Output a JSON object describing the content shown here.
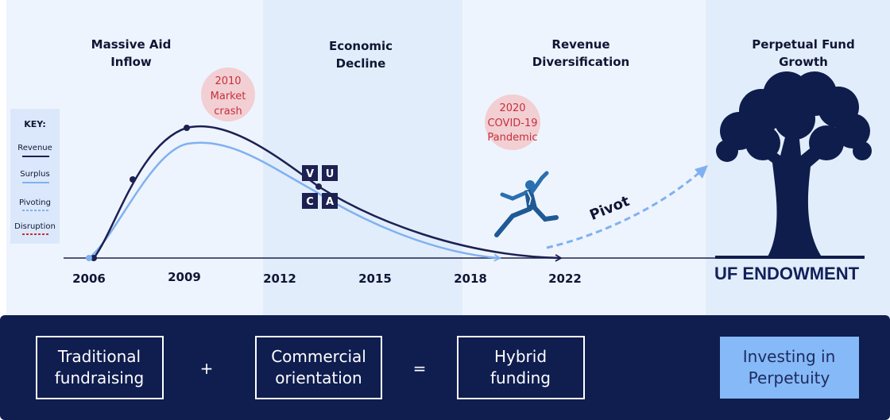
{
  "periods": [
    {
      "line1": "Massive Aid",
      "line2": "Inflow"
    },
    {
      "line1": "Economic",
      "line2": "Decline"
    },
    {
      "line1": "Revenue",
      "line2": "Diversification"
    },
    {
      "line1": "Perpetual Fund",
      "line2": "Growth"
    }
  ],
  "years": [
    "2006",
    "2009",
    "2012",
    "2015",
    "2018",
    "2022"
  ],
  "events": [
    {
      "line1": "2010",
      "line2": "Market",
      "line3": "crash"
    },
    {
      "line1": "2020",
      "line2": "COVID-19",
      "line3": "Pandemic"
    }
  ],
  "key": {
    "title": "KEY:",
    "items": [
      "Revenue",
      "Surplus",
      "Pivoting",
      "Disruption"
    ]
  },
  "vuca": [
    "V",
    "U",
    "C",
    "A"
  ],
  "pivot_label": "Pivot",
  "endowment_label": "UF ENDOWMENT",
  "formula": {
    "box1": {
      "line1": "Traditional",
      "line2": "fundraising"
    },
    "op1": "+",
    "box2": {
      "line1": "Commercial",
      "line2": "orientation"
    },
    "op2": "=",
    "box3": {
      "line1": "Hybrid",
      "line2": "funding"
    },
    "box4": {
      "line1": "Investing in",
      "line2": "Perpetuity"
    }
  },
  "colors": {
    "navy": "#101c4f",
    "revenue": "#1c2152",
    "surplus": "#7fb1f2",
    "disruption": "#c6303c",
    "event_bubble": "#f2cfd3",
    "highlight_box": "#86b9f7"
  }
}
